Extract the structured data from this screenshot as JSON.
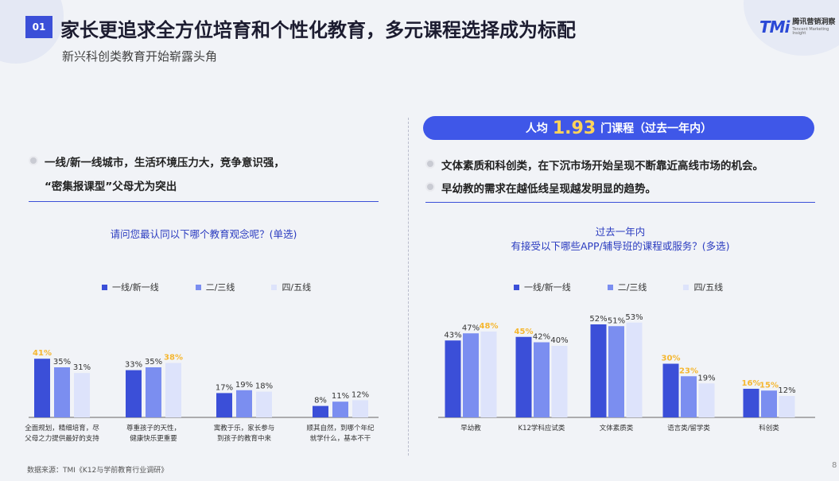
{
  "header": {
    "section_number": "01",
    "title": "家长更追求全方位培育和个性化教育，多元课程选择成为标配",
    "subtitle": "新兴科创类教育开始崭露头角",
    "logo_mark": "TMi",
    "logo_cn": "腾讯营销洞察",
    "logo_en": "Tencent Marketing Insight"
  },
  "left": {
    "bullet_line1": "一线/新一线城市，生活环境压力大，竞争意识强，",
    "bullet_line2": "“密集报课型”父母尤为突出",
    "question": "请问您最认同以下哪个教育观念呢？(单选)"
  },
  "right": {
    "banner_prefix": "人均",
    "banner_value": "1.93",
    "banner_suffix": "门课程（过去一年内）",
    "bullet1": "文体素质和科创类，在下沉市场开始呈现不断靠近高线市场的机会。",
    "bullet2": "早幼教的需求在越低线呈现越发明显的趋势。",
    "question_line1": "过去一年内",
    "question_line2": "有接受以下哪些APP/辅导班的课程或服务？(多选)"
  },
  "colors": {
    "series": [
      "#3b4fd8",
      "#7b8ef0",
      "#dde3fb"
    ],
    "highlight_label": "#f5b731",
    "label": "#333333"
  },
  "chart_data": [
    {
      "type": "bar",
      "series": [
        {
          "name": "一线/新一线",
          "values": [
            41,
            33,
            17,
            8
          ]
        },
        {
          "name": "二/三线",
          "values": [
            35,
            35,
            19,
            11
          ]
        },
        {
          "name": "四/五线",
          "values": [
            31,
            38,
            18,
            12
          ]
        }
      ],
      "categories": [
        [
          "全面规划，精细培育，尽",
          "父母之力提供最好的支持"
        ],
        [
          "尊重孩子的天性，",
          "健康快乐更重要"
        ],
        [
          "寓教于乐，家长参与",
          "到孩子的教育中来"
        ],
        [
          "顺其自然，到哪个年纪",
          "就学什么，基本不干"
        ]
      ],
      "data_labels": [
        [
          "41%",
          "33%",
          "17%",
          "8%"
        ],
        [
          "35%",
          "35%",
          "19%",
          "11%"
        ],
        [
          "31%",
          "38%",
          "18%",
          "12%"
        ]
      ],
      "highlighted": [
        [
          0,
          0
        ],
        [
          2,
          1
        ]
      ],
      "ylim": [
        0,
        60
      ]
    },
    {
      "type": "bar",
      "series": [
        {
          "name": "一线/新一线",
          "values": [
            43,
            45,
            52,
            30,
            16
          ]
        },
        {
          "name": "二/三线",
          "values": [
            47,
            42,
            51,
            23,
            15
          ]
        },
        {
          "name": "四/五线",
          "values": [
            48,
            40,
            53,
            19,
            12
          ]
        }
      ],
      "categories": [
        [
          "早幼教"
        ],
        [
          "K12学科应试类"
        ],
        [
          "文体素质类"
        ],
        [
          "语言类/留学类"
        ],
        [
          "科创类"
        ]
      ],
      "data_labels": [
        [
          "43%",
          "45%",
          "52%",
          "30%",
          "16%"
        ],
        [
          "47%",
          "42%",
          "51%",
          "23%",
          "15%"
        ],
        [
          "48%",
          "40%",
          "53%",
          "19%",
          "12%"
        ]
      ],
      "highlighted": [
        [
          2,
          0
        ],
        [
          0,
          1
        ],
        [
          0,
          3
        ],
        [
          1,
          3
        ],
        [
          0,
          4
        ],
        [
          1,
          4
        ]
      ],
      "ylim": [
        0,
        60
      ]
    }
  ],
  "footer": {
    "source": "数据来源：TMI《K12与学前教育行业调研》",
    "page": "8"
  }
}
